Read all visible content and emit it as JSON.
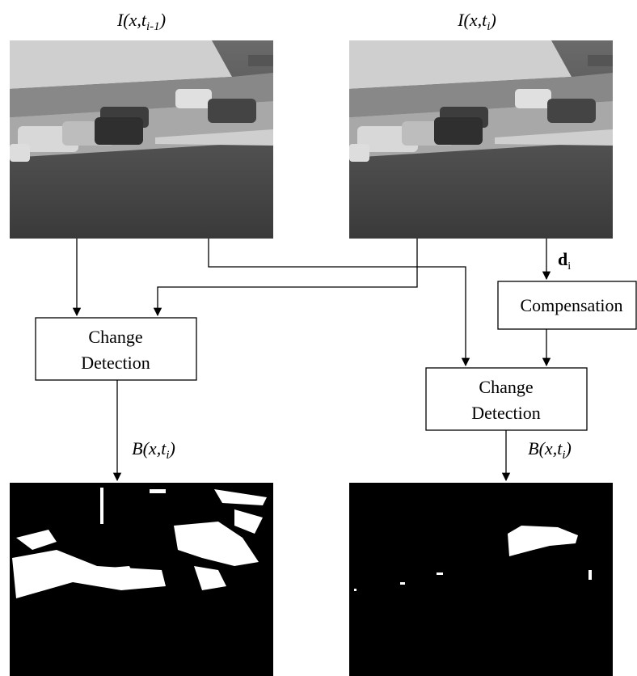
{
  "inputs": [
    {
      "label": {
        "main": "I(x,t",
        "sub": "i-1",
        "end": ")"
      }
    },
    {
      "label": {
        "main": "I(x,t",
        "sub": "i",
        "end": ")"
      }
    }
  ],
  "displacement": {
    "main": "d",
    "sub": "i"
  },
  "compensation": "Compensation",
  "change_detection": [
    [
      "Change",
      "Detection"
    ],
    [
      "Change",
      "Detection"
    ]
  ],
  "outputs": [
    {
      "label": {
        "main": "B(x,t",
        "sub": "i",
        "end": ")"
      }
    },
    {
      "label": {
        "main": "B(x,t",
        "sub": "i",
        "end": ")"
      }
    }
  ]
}
